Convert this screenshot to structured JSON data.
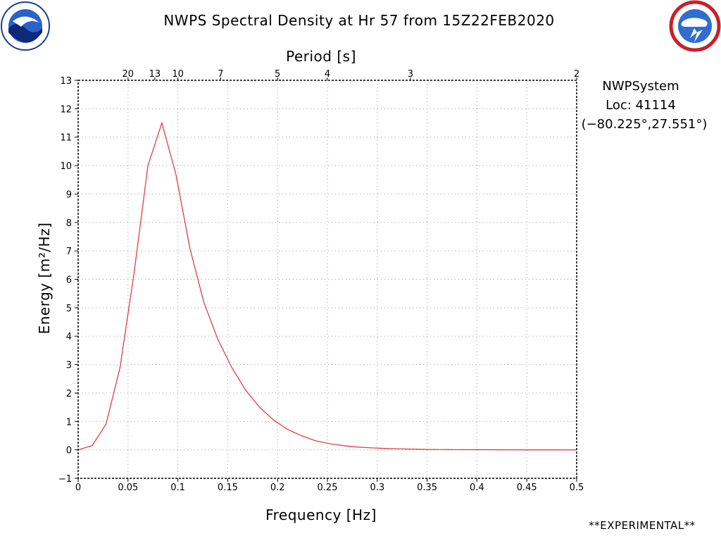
{
  "header": {
    "title": "NWPS Spectral Density at Hr 57 from 15Z22FEB2020",
    "left_logo": "noaa-logo",
    "right_logo": "national-weather-service-logo"
  },
  "side_info": {
    "system": "NWPSystem",
    "location": "Loc: 41114",
    "coords": "(−80.225°,27.551°)"
  },
  "footer": {
    "note": "**EXPERIMENTAL**"
  },
  "colors": {
    "series": "#e03030",
    "grid": "#9a9a9a",
    "frame": "#000000"
  },
  "chart_data": {
    "type": "line",
    "title": "NWPS Spectral Density at Hr 57 from 15Z22FEB2020",
    "xlabel": "Frequency [Hz]",
    "ylabel": "Energy [m²/Hz]",
    "top_axis_label": "Period [s]",
    "xlim": [
      0,
      0.5
    ],
    "ylim": [
      -1,
      13
    ],
    "x_ticks": [
      0,
      0.05,
      0.1,
      0.15,
      0.2,
      0.25,
      0.3,
      0.35,
      0.4,
      0.45,
      0.5
    ],
    "x_tick_labels": [
      "0",
      "0.05",
      "0.1",
      "0.15",
      "0.2",
      "0.25",
      "0.3",
      "0.35",
      "0.4",
      "0.45",
      "0.5"
    ],
    "y_ticks": [
      -1,
      0,
      1,
      2,
      3,
      4,
      5,
      6,
      7,
      8,
      9,
      10,
      11,
      12,
      13
    ],
    "y_tick_labels": [
      "−1",
      "0",
      "1",
      "2",
      "3",
      "4",
      "5",
      "6",
      "7",
      "8",
      "9",
      "10",
      "11",
      "12",
      "13"
    ],
    "period_ticks": [
      {
        "label": "20",
        "freq": 0.05
      },
      {
        "label": "13",
        "freq": 0.0769
      },
      {
        "label": "10",
        "freq": 0.1
      },
      {
        "label": "7",
        "freq": 0.1429
      },
      {
        "label": "5",
        "freq": 0.2
      },
      {
        "label": "4",
        "freq": 0.25
      },
      {
        "label": "3",
        "freq": 0.3333
      },
      {
        "label": "2",
        "freq": 0.5
      }
    ],
    "grid": true,
    "series": [
      {
        "x": [
          0,
          0.014,
          0.028,
          0.042,
          0.056,
          0.07,
          0.084,
          0.098,
          0.112,
          0.126,
          0.14,
          0.154,
          0.168,
          0.182,
          0.196,
          0.21,
          0.224,
          0.238,
          0.252,
          0.266,
          0.28,
          0.294,
          0.308,
          0.322,
          0.336,
          0.35,
          0.364,
          0.378,
          0.392,
          0.406,
          0.42,
          0.434,
          0.448,
          0.462,
          0.476,
          0.49,
          0.5
        ],
        "y": [
          0.0,
          0.15,
          0.9,
          2.9,
          6.2,
          10.0,
          11.5,
          9.7,
          7.1,
          5.2,
          3.9,
          2.9,
          2.1,
          1.5,
          1.05,
          0.72,
          0.5,
          0.32,
          0.22,
          0.15,
          0.1,
          0.07,
          0.05,
          0.035,
          0.025,
          0.015,
          0.01,
          0.008,
          0.006,
          0.005,
          0.004,
          0.003,
          0.002,
          0.002,
          0.001,
          0.001,
          0.001
        ]
      }
    ]
  }
}
